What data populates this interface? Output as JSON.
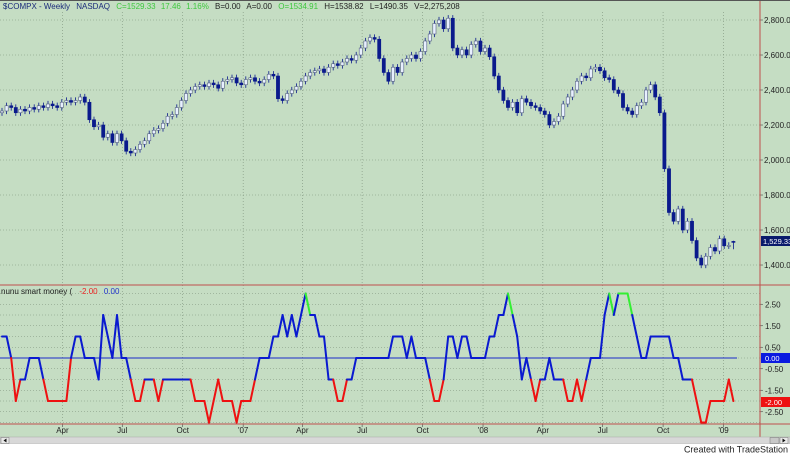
{
  "header": {
    "symbol": "$COMPX - Weekly",
    "exchange": "NASDAQ",
    "close": "C=1529.33",
    "change": "17.46",
    "change_pct": "1.16%",
    "bid": "B=0.00",
    "ask": "A=0.00",
    "open": "O=1534.91",
    "high": "H=1538.82",
    "low": "L=1490.35",
    "volume": "V=2,275,208"
  },
  "indicator_header": {
    "name": "nunu smart money (",
    "value1": "-2.00",
    "value2": "0.00"
  },
  "footer": {
    "credit": "Created with TradeStation"
  },
  "colors": {
    "background": "#c5ddc3",
    "candle": "#0a1a8c",
    "indicator_line": "#0a1ad0",
    "indicator_high": "#33ee33",
    "indicator_low": "#ee1111",
    "zero_line": "#1a2ac8",
    "pane_border": "#c0504d",
    "last_price_box": "#0a1a6c",
    "zero_box": "#0a1ae0",
    "indicator_box": "#ee1111"
  },
  "chart_data": [
    {
      "type": "candlestick",
      "title": "$COMPX - Weekly NASDAQ",
      "first_week": "2005-12-30",
      "interval": "weekly",
      "ylim": [
        1300,
        2900
      ],
      "grid": true,
      "y_ticks": [
        "2,800.00",
        "2,600.00",
        "2,400.00",
        "2,200.00",
        "2,000.00",
        "1,800.00",
        "1,600.00",
        "1,400.00"
      ],
      "y_tick_values": [
        2800,
        2600,
        2400,
        2200,
        2000,
        1800,
        1600,
        1400
      ],
      "last_price_label": "1,529.33",
      "last_price": 1529.33,
      "last_open": 1534.91,
      "last_high": 1538.82,
      "last_low": 1490.35,
      "closes": [
        2280,
        2310,
        2300,
        2270,
        2290,
        2280,
        2300,
        2290,
        2310,
        2300,
        2320,
        2310,
        2300,
        2330,
        2340,
        2330,
        2340,
        2360,
        2330,
        2230,
        2190,
        2200,
        2130,
        2150,
        2100,
        2150,
        2110,
        2050,
        2040,
        2060,
        2090,
        2110,
        2150,
        2170,
        2180,
        2210,
        2250,
        2260,
        2300,
        2340,
        2380,
        2400,
        2420,
        2430,
        2420,
        2440,
        2430,
        2410,
        2450,
        2460,
        2470,
        2440,
        2430,
        2460,
        2470,
        2450,
        2440,
        2460,
        2490,
        2480,
        2350,
        2340,
        2380,
        2400,
        2420,
        2450,
        2480,
        2500,
        2510,
        2520,
        2500,
        2530,
        2550,
        2540,
        2560,
        2580,
        2570,
        2600,
        2640,
        2680,
        2700,
        2690,
        2580,
        2500,
        2450,
        2530,
        2500,
        2560,
        2580,
        2600,
        2580,
        2620,
        2680,
        2720,
        2780,
        2800,
        2750,
        2810,
        2640,
        2600,
        2630,
        2600,
        2660,
        2680,
        2620,
        2640,
        2590,
        2480,
        2400,
        2340,
        2300,
        2330,
        2270,
        2350,
        2330,
        2310,
        2300,
        2280,
        2260,
        2200,
        2220,
        2250,
        2320,
        2360,
        2400,
        2450,
        2480,
        2470,
        2520,
        2530,
        2510,
        2470,
        2460,
        2400,
        2380,
        2300,
        2280,
        2260,
        2310,
        2330,
        2400,
        2430,
        2360,
        2270,
        1950,
        1700,
        1650,
        1720,
        1600,
        1650,
        1540,
        1440,
        1400,
        1450,
        1500,
        1480,
        1550,
        1510,
        1511.87,
        1529.33
      ]
    },
    {
      "type": "line",
      "title": "nunu smart money",
      "first_week": "2005-12-30",
      "interval": "weekly",
      "ylim": [
        -3.2,
        3.5
      ],
      "y_ticks": [
        "2.50",
        "1.50",
        "0.50",
        "-0.50",
        "-1.50",
        "-2.50"
      ],
      "y_tick_values": [
        2.5,
        1.5,
        0.5,
        -0.5,
        -1.5,
        -2.5
      ],
      "zero_label": "0.00",
      "last_value_label": "-2.00",
      "values": [
        1,
        1,
        0,
        -2,
        -1,
        -1,
        0,
        0,
        0,
        -1,
        -2,
        -2,
        -2,
        -2,
        -2,
        0,
        1,
        1,
        0,
        0,
        0,
        -1,
        2,
        1,
        0,
        2,
        0,
        0,
        -1,
        -2,
        -2,
        -1,
        -1,
        -1,
        -2,
        -1,
        -1,
        -1,
        -1,
        -1,
        -1,
        -1,
        -2,
        -2,
        -2,
        -3,
        -2,
        -1,
        -2,
        -2,
        -2,
        -3,
        -2,
        -2,
        -2,
        -1,
        0,
        0,
        0,
        1,
        1,
        2,
        1,
        2,
        1,
        2,
        3,
        2,
        2,
        1,
        1,
        -1,
        -1,
        -2,
        -2,
        -1,
        -1,
        0,
        0,
        0,
        0,
        0,
        0,
        0,
        0,
        1,
        1,
        1,
        0,
        1,
        0,
        0,
        0,
        -1,
        -2,
        -2,
        -1,
        1,
        1,
        0,
        1,
        1,
        0,
        0,
        0,
        0,
        1,
        1,
        2,
        2,
        3,
        2,
        1,
        -1,
        0,
        -1,
        -2,
        -1,
        -1,
        0,
        -1,
        -1,
        -1,
        -2,
        -2,
        -1,
        -2,
        -1,
        0,
        0,
        0,
        2,
        3,
        2,
        3,
        3,
        3,
        2,
        1,
        0,
        0,
        1,
        1,
        1,
        1,
        1,
        0,
        0,
        -1,
        -1,
        -1,
        -2,
        -3,
        -3,
        -2,
        -2,
        -2,
        -2,
        -1,
        -2
      ]
    }
  ],
  "x_axis": {
    "ticks": [
      {
        "label": "Apr",
        "date": "2006-04-01"
      },
      {
        "label": "Jul",
        "date": "2006-07-01"
      },
      {
        "label": "Oct",
        "date": "2006-10-01"
      },
      {
        "label": "'07",
        "date": "2007-01-01"
      },
      {
        "label": "Apr",
        "date": "2007-04-01"
      },
      {
        "label": "Jul",
        "date": "2007-07-01"
      },
      {
        "label": "Oct",
        "date": "2007-10-01"
      },
      {
        "label": "'08",
        "date": "2008-01-01"
      },
      {
        "label": "Apr",
        "date": "2008-04-01"
      },
      {
        "label": "Jul",
        "date": "2008-07-01"
      },
      {
        "label": "Oct",
        "date": "2008-10-01"
      },
      {
        "label": "'09",
        "date": "2009-01-01"
      }
    ]
  },
  "scrollbar": {
    "left_icon": "arrow-left-icon",
    "right_icon": "arrow-right-icon"
  }
}
